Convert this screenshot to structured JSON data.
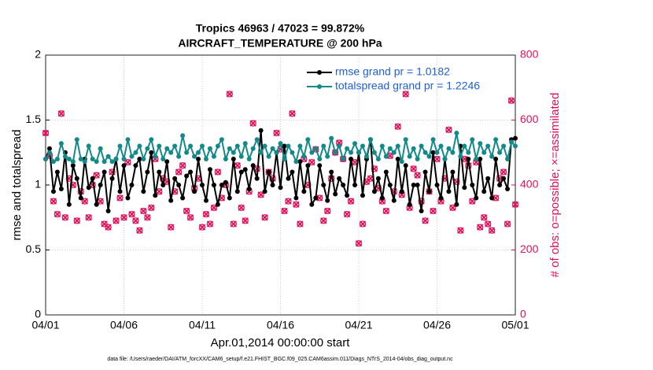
{
  "chart_data": {
    "type": "line",
    "title": "Tropics 46963 / 47023 = 99.872%",
    "subtitle": "AIRCRAFT_TEMPERATURE @ 200 hPa",
    "x_label": "Apr.01,2014 00:00:00 start",
    "y_label": "rmse and totalspread",
    "y2_label": "# of obs: o=possible; ×=assimilated",
    "footnote": "data file: /Users/raeder/DAI/ATM_forcXX/CAM6_setup/f.e21.FHIST_BGC.f09_025.CAM6assim.011/Diags_NTrS_2014-04/obs_diag_output.nc",
    "xlim": [
      0,
      30
    ],
    "xticks": [
      {
        "value": 0,
        "label": "04/01"
      },
      {
        "value": 5,
        "label": "04/06"
      },
      {
        "value": 10,
        "label": "04/11"
      },
      {
        "value": 15,
        "label": "04/16"
      },
      {
        "value": 20,
        "label": "04/21"
      },
      {
        "value": 25,
        "label": "04/26"
      },
      {
        "value": 30,
        "label": "05/01"
      }
    ],
    "ylim": [
      0,
      2
    ],
    "yticks": [
      0,
      0.5,
      1,
      1.5,
      2
    ],
    "y2lim": [
      0,
      800
    ],
    "y2ticks": [
      0,
      200,
      400,
      600,
      800
    ],
    "grid": true,
    "legend": "upper right",
    "legend_text_color": "#1f5fd8",
    "x": [
      0,
      0.25,
      0.5,
      0.75,
      1,
      1.25,
      1.5,
      1.75,
      2,
      2.25,
      2.5,
      2.75,
      3,
      3.25,
      3.5,
      3.75,
      4,
      4.25,
      4.5,
      4.75,
      5,
      5.25,
      5.5,
      5.75,
      6,
      6.25,
      6.5,
      6.75,
      7,
      7.25,
      7.5,
      7.75,
      8,
      8.25,
      8.5,
      8.75,
      9,
      9.25,
      9.5,
      9.75,
      10,
      10.25,
      10.5,
      10.75,
      11,
      11.25,
      11.5,
      11.75,
      12,
      12.25,
      12.5,
      12.75,
      13,
      13.25,
      13.5,
      13.75,
      14,
      14.25,
      14.5,
      14.75,
      15,
      15.25,
      15.5,
      15.75,
      16,
      16.25,
      16.5,
      16.75,
      17,
      17.25,
      17.5,
      17.75,
      18,
      18.25,
      18.5,
      18.75,
      19,
      19.25,
      19.5,
      19.75,
      20,
      20.25,
      20.5,
      20.75,
      21,
      21.25,
      21.5,
      21.75,
      22,
      22.25,
      22.5,
      22.75,
      23,
      23.25,
      23.5,
      23.75,
      24,
      24.25,
      24.5,
      24.75,
      25,
      25.25,
      25.5,
      25.75,
      26,
      26.25,
      26.5,
      26.75,
      27,
      27.25,
      27.5,
      27.75,
      28,
      28.25,
      28.5,
      28.75,
      29,
      29.25,
      29.5,
      29.75,
      30
    ],
    "series": [
      {
        "name": "rmse grand pr = 1.0182",
        "color": "#000000",
        "values": [
          1.2,
          1.28,
          0.95,
          1.1,
          0.97,
          1.25,
          0.85,
          1.15,
          1.05,
          0.9,
          1.2,
          0.98,
          1.05,
          0.85,
          1.0,
          1.1,
          0.8,
          1.05,
          1.2,
          0.95,
          1.15,
          0.9,
          1.0,
          1.15,
          1.2,
          0.95,
          1.1,
          1.25,
          0.92,
          1.1,
          1.0,
          1.18,
          0.88,
          1.05,
          1.0,
          0.9,
          1.07,
          1.1,
          0.95,
          1.2,
          1.0,
          0.88,
          1.12,
          1.0,
          0.85,
          1.0,
          1.02,
          0.9,
          1.2,
          0.95,
          1.1,
          1.12,
          0.97,
          1.15,
          1.05,
          1.42,
          0.95,
          1.1,
          1.0,
          1.25,
          0.98,
          1.3,
          1.05,
          1.1,
          0.9,
          1.18,
          0.95,
          1.15,
          0.85,
          0.9,
          1.15,
          1.0,
          0.88,
          1.1,
          0.93,
          1.05,
          1.0,
          0.92,
          1.2,
          1.0,
          1.25,
          0.92,
          1.2,
          1.35,
          0.95,
          1.05,
          0.9,
          1.1,
          1.0,
          0.88,
          1.2,
          0.95,
          1.15,
          0.85,
          1.0,
          1.0,
          0.8,
          1.1,
          0.95,
          1.25,
          1.0,
          0.9,
          1.2,
          0.95,
          1.1,
          0.85,
          1.3,
          0.98,
          1.2,
          1.0,
          0.9,
          1.2,
          0.95,
          1.05,
          0.9,
          1.2,
          1.0,
          1.05,
          0.97,
          1.35,
          1.36
        ]
      },
      {
        "name": "totalspread grand pr = 1.2246",
        "color": "#138a8a",
        "values": [
          1.2,
          1.25,
          1.18,
          1.2,
          1.32,
          1.22,
          1.2,
          1.18,
          1.35,
          1.2,
          1.18,
          1.3,
          1.2,
          1.18,
          1.28,
          1.18,
          1.22,
          1.18,
          1.2,
          1.3,
          1.2,
          1.35,
          1.22,
          1.25,
          1.3,
          1.2,
          1.28,
          1.35,
          1.22,
          1.3,
          1.2,
          1.28,
          1.25,
          1.3,
          1.22,
          1.38,
          1.25,
          1.3,
          1.22,
          1.25,
          1.3,
          1.2,
          1.28,
          1.22,
          1.3,
          1.35,
          1.2,
          1.28,
          1.25,
          1.3,
          1.22,
          1.32,
          1.2,
          1.28,
          1.35,
          1.25,
          1.3,
          1.22,
          1.28,
          1.25,
          1.32,
          1.2,
          1.3,
          1.25,
          1.18,
          1.3,
          1.22,
          1.35,
          1.25,
          1.28,
          1.2,
          1.3,
          1.22,
          1.36,
          1.25,
          1.3,
          1.2,
          1.28,
          1.25,
          1.32,
          1.25,
          1.3,
          1.22,
          1.35,
          1.25,
          1.2,
          1.3,
          1.22,
          1.28,
          1.25,
          1.3,
          1.18,
          1.35,
          1.22,
          1.28,
          1.2,
          1.3,
          1.25,
          1.22,
          1.35,
          1.25,
          1.3,
          1.2,
          1.28,
          1.25,
          1.4,
          1.22,
          1.3,
          1.25,
          1.35,
          1.2,
          1.32,
          1.25,
          1.3,
          1.22,
          1.35,
          1.25,
          1.3,
          1.2,
          1.33,
          1.3
        ]
      },
      {
        "color": "#e0105a",
        "axis": "y2",
        "marker": "obs",
        "values": [
          560,
          490,
          350,
          310,
          620,
          300,
          420,
          400,
          290,
          380,
          350,
          300,
          400,
          430,
          350,
          280,
          270,
          440,
          290,
          360,
          300,
          470,
          310,
          290,
          260,
          320,
          300,
          330,
          480,
          380,
          420,
          410,
          270,
          380,
          440,
          460,
          320,
          300,
          390,
          420,
          270,
          310,
          280,
          330,
          440,
          360,
          400,
          680,
          280,
          460,
          330,
          290,
          380,
          590,
          450,
          370,
          300,
          440,
          420,
          560,
          510,
          320,
          350,
          620,
          340,
          280,
          480,
          400,
          470,
          510,
          360,
          290,
          320,
          420,
          500,
          530,
          480,
          310,
          350,
          470,
          220,
          280,
          410,
          420,
          450,
          390,
          350,
          320,
          490,
          380,
          580,
          370,
          680,
          330,
          450,
          430,
          350,
          290,
          380,
          320,
          480,
          350,
          420,
          570,
          330,
          410,
          260,
          480,
          460,
          350,
          470,
          270,
          300,
          280,
          260,
          360,
          420,
          440,
          280,
          660,
          340
        ]
      }
    ]
  }
}
